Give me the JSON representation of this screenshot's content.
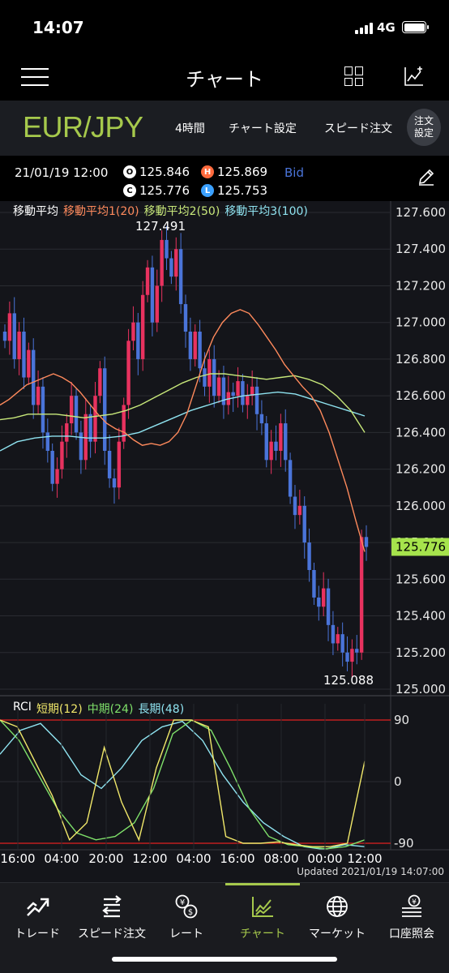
{
  "status": {
    "time": "14:07",
    "network": "4G"
  },
  "nav": {
    "title": "チャート"
  },
  "symbol": {
    "pair": "EUR/JPY",
    "timeframe": "4時間",
    "chart_settings": "チャート設定",
    "speed_order": "スピード注文",
    "order_settings_line1": "注文",
    "order_settings_line2": "設定"
  },
  "info": {
    "datetime": "21/01/19 12:00",
    "open_letter": "O",
    "open": "125.846",
    "high_letter": "H",
    "high": "125.869",
    "close_letter": "C",
    "close": "125.776",
    "low_letter": "L",
    "low": "125.753",
    "price_type": "Bid"
  },
  "legend": {
    "ma_title": "移動平均",
    "ma1": "移動平均1(20)",
    "ma2": "移動平均2(50)",
    "ma3": "移動平均3(100)",
    "rci_title": "RCI",
    "rci_short": "短期(12)",
    "rci_mid": "中期(24)",
    "rci_long": "長期(48)"
  },
  "updated": "Updated  2021/01/19 14:07:00",
  "colors": {
    "accent": "#a6c94c",
    "up": "#e8325f",
    "down": "#4a74d9",
    "ma1": "#ff8a5c",
    "ma2": "#c8e87a",
    "ma3": "#8fe3f0",
    "rci_short": "#f1e86a",
    "rci_mid": "#7fe06a",
    "rci_long": "#8fe3f0",
    "current_price_bg": "#a6e34c",
    "limit_line": "#e02020"
  },
  "chart_data": {
    "type": "candlestick",
    "price_axis": [
      "127.600",
      "127.400",
      "127.200",
      "127.000",
      "126.800",
      "126.600",
      "126.400",
      "126.200",
      "126.000",
      "125.800",
      "125.600",
      "125.400",
      "125.200",
      "125.000"
    ],
    "ylim": [
      125.0,
      127.6
    ],
    "time_axis": [
      "16:00",
      "04:00",
      "20:00",
      "12:00",
      "04:00",
      "16:00",
      "08:00",
      "00:00",
      "12:00"
    ],
    "current_price": "125.776",
    "high_label": "127.491",
    "low_label": "125.088",
    "closes": [
      126.9,
      127.05,
      126.8,
      126.95,
      126.7,
      126.85,
      126.55,
      126.65,
      126.4,
      126.3,
      126.12,
      126.2,
      126.35,
      126.45,
      126.6,
      126.4,
      126.25,
      126.5,
      126.35,
      126.6,
      126.75,
      126.3,
      126.15,
      126.1,
      126.35,
      126.55,
      126.9,
      127.0,
      126.8,
      127.15,
      127.3,
      127.0,
      127.2,
      127.45,
      127.35,
      127.25,
      127.4,
      127.1,
      126.95,
      126.8,
      126.95,
      126.75,
      126.65,
      126.8,
      126.6,
      126.7,
      126.55,
      126.62,
      126.6,
      126.68,
      126.55,
      126.6,
      126.65,
      126.5,
      126.45,
      126.25,
      126.35,
      126.3,
      126.45,
      126.25,
      126.05,
      125.95,
      126.0,
      125.8,
      125.65,
      125.5,
      125.45,
      125.55,
      125.35,
      125.25,
      125.3,
      125.2,
      125.15,
      125.22,
      125.2,
      125.83,
      125.776
    ],
    "ma1_20": [
      126.55,
      126.58,
      126.62,
      126.66,
      126.68,
      126.7,
      126.72,
      126.7,
      126.67,
      126.62,
      126.56,
      126.5,
      126.45,
      126.42,
      126.4,
      126.36,
      126.33,
      126.34,
      126.33,
      126.35,
      126.4,
      126.5,
      126.65,
      126.8,
      126.92,
      127.0,
      127.05,
      127.07,
      127.05,
      126.99,
      126.92,
      126.85,
      126.77,
      126.71,
      126.65,
      126.6,
      126.52,
      126.4,
      126.25,
      126.1,
      125.92,
      125.75
    ],
    "ma2_50": [
      126.47,
      126.48,
      126.5,
      126.5,
      126.5,
      126.49,
      126.48,
      126.49,
      126.5,
      126.52,
      126.55,
      126.59,
      126.63,
      126.67,
      126.7,
      126.72,
      126.72,
      126.71,
      126.7,
      126.69,
      126.7,
      126.71,
      126.69,
      126.66,
      126.6,
      126.52,
      126.4
    ],
    "ma3_100": [
      126.3,
      126.35,
      126.37,
      126.38,
      126.38,
      126.37,
      126.37,
      126.38,
      126.4,
      126.44,
      126.48,
      126.52,
      126.55,
      126.58,
      126.6,
      126.61,
      126.62,
      126.61,
      126.58,
      126.55,
      126.52,
      126.49
    ],
    "rci_short_12": [
      90,
      80,
      30,
      -20,
      -85,
      -60,
      50,
      -30,
      -85,
      20,
      90,
      90,
      80,
      -80,
      -90,
      -90,
      -88,
      -92,
      -95,
      -95,
      -90,
      30
    ],
    "rci_mid_24": [
      90,
      60,
      10,
      -40,
      -75,
      -85,
      -80,
      -60,
      -10,
      70,
      90,
      75,
      20,
      -40,
      -80,
      -92,
      -95,
      -98,
      -95,
      -85
    ],
    "rci_long_48": [
      40,
      75,
      85,
      55,
      10,
      -10,
      20,
      60,
      80,
      88,
      60,
      10,
      -30,
      -60,
      -80,
      -95,
      -99,
      -92,
      -95
    ]
  },
  "tabs": [
    {
      "label": "トレード",
      "icon": "trend-up-icon"
    },
    {
      "label": "スピード注文",
      "icon": "speed-order-icon"
    },
    {
      "label": "レート",
      "icon": "rate-currency-icon"
    },
    {
      "label": "チャート",
      "icon": "chart-icon"
    },
    {
      "label": "マーケット",
      "icon": "globe-icon"
    },
    {
      "label": "口座照会",
      "icon": "account-icon"
    }
  ]
}
